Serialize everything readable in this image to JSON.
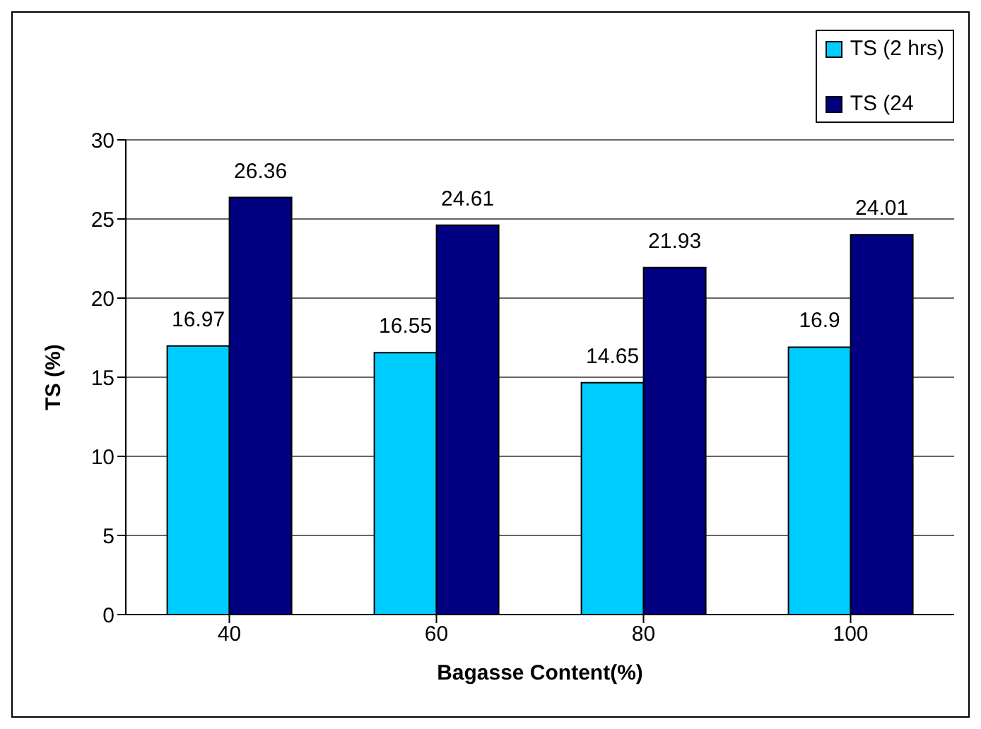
{
  "chart_data": {
    "type": "bar",
    "xlabel": "Bagasse Content(%)",
    "ylabel": "TS (%)",
    "categories": [
      "40",
      "60",
      "80",
      "100"
    ],
    "series": [
      {
        "name": "TS (2 hrs)",
        "color": "#00ccff",
        "values": [
          16.97,
          16.55,
          14.65,
          16.9
        ]
      },
      {
        "name": "TS (24",
        "color": "#000080",
        "values": [
          26.36,
          24.61,
          21.93,
          24.01
        ]
      }
    ],
    "ylim": [
      0,
      30
    ],
    "yticks": [
      0,
      5,
      10,
      15,
      20,
      25,
      30
    ],
    "grid": "y",
    "legend": "top right",
    "data_labels": true
  }
}
